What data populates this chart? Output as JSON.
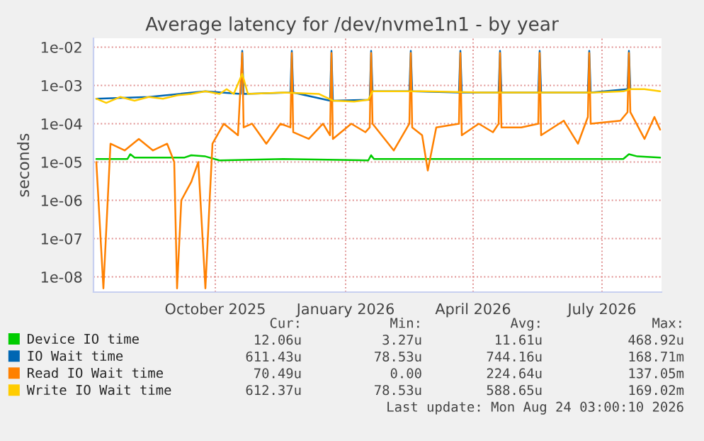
{
  "chart_data": {
    "type": "line",
    "title": "Average latency for /dev/nvme1n1 - by year",
    "ylabel": "seconds",
    "log": true,
    "grid": true,
    "legend": "bottom",
    "line_style": "solid",
    "marker": "none",
    "xlim": [
      "2025-07-07",
      "2026-08-12"
    ],
    "ylim": [
      4e-09,
      0.017
    ],
    "xticks": [
      {
        "value": "2025-10-01",
        "label": "October 2025"
      },
      {
        "value": "2026-01-01",
        "label": "January 2026"
      },
      {
        "value": "2026-04-01",
        "label": "April 2026"
      },
      {
        "value": "2026-07-01",
        "label": "July 2026"
      }
    ],
    "yticks": [
      {
        "value": 1e-08,
        "label": "1e-08"
      },
      {
        "value": 1e-07,
        "label": "1e-07"
      },
      {
        "value": 1e-06,
        "label": "1e-06"
      },
      {
        "value": 1e-05,
        "label": "1e-05"
      },
      {
        "value": 0.0001,
        "label": "1e-04"
      },
      {
        "value": 0.001,
        "label": "1e-03"
      },
      {
        "value": 0.01,
        "label": "1e-02"
      }
    ],
    "series": [
      {
        "name": "Device IO time",
        "color": "#00cc00",
        "x": [
          "2025-07-09",
          "2025-07-31",
          "2025-08-02",
          "2025-08-05",
          "2025-09-09",
          "2025-09-14",
          "2025-09-24",
          "2025-10-04",
          "2025-11-18",
          "2026-01-17",
          "2026-01-19",
          "2026-01-21",
          "2026-03-18",
          "2026-05-17",
          "2026-07-16",
          "2026-07-20",
          "2026-07-26",
          "2026-08-11"
        ],
        "values": [
          1.2e-05,
          1.2e-05,
          1.6e-05,
          1.3e-05,
          1.3e-05,
          1.5e-05,
          1.4e-05,
          1.1e-05,
          1.2e-05,
          1.1e-05,
          1.5e-05,
          1.2e-05,
          1.2e-05,
          1.2e-05,
          1.2e-05,
          1.6e-05,
          1.4e-05,
          1.3e-05
        ]
      },
      {
        "name": "IO Wait time",
        "color": "#0066b3",
        "x": [
          "2025-07-09",
          "2025-08-15",
          "2025-09-24",
          "2025-10-19",
          "2025-10-20",
          "2025-10-21",
          "2025-11-23",
          "2025-11-24",
          "2025-11-25",
          "2025-12-21",
          "2025-12-22",
          "2025-12-23",
          "2026-01-18",
          "2026-01-19",
          "2026-01-20",
          "2026-02-15",
          "2026-02-16",
          "2026-02-17",
          "2026-03-22",
          "2026-03-23",
          "2026-03-24",
          "2026-04-19",
          "2026-04-20",
          "2026-04-21",
          "2026-05-17",
          "2026-05-18",
          "2026-05-19",
          "2026-06-21",
          "2026-06-22",
          "2026-06-23",
          "2026-07-19",
          "2026-07-20",
          "2026-07-21"
        ],
        "values": [
          0.00045,
          0.0005,
          0.0007,
          0.0006,
          0.008,
          0.0006,
          0.00065,
          0.008,
          0.00065,
          0.0004,
          0.008,
          0.0004,
          0.00042,
          0.008,
          0.0007,
          0.0007,
          0.008,
          0.0007,
          0.00065,
          0.008,
          0.00065,
          0.00065,
          0.008,
          0.00065,
          0.00065,
          0.008,
          0.00065,
          0.00065,
          0.008,
          0.00065,
          0.0008,
          0.008,
          0.0008
        ]
      },
      {
        "name": "Read IO Wait time",
        "color": "#ff8000",
        "x": [
          "2025-07-09",
          "2025-07-14",
          "2025-07-19",
          "2025-07-29",
          "2025-08-08",
          "2025-08-18",
          "2025-08-28",
          "2025-09-02",
          "2025-09-04",
          "2025-09-07",
          "2025-09-14",
          "2025-09-19",
          "2025-09-24",
          "2025-09-27",
          "2025-09-29",
          "2025-10-07",
          "2025-10-17",
          "2025-10-20",
          "2025-10-21",
          "2025-10-27",
          "2025-11-06",
          "2025-11-16",
          "2025-11-23",
          "2025-11-24",
          "2025-11-25",
          "2025-12-06",
          "2025-12-16",
          "2025-12-21",
          "2025-12-22",
          "2025-12-23",
          "2026-01-05",
          "2026-01-15",
          "2026-01-18",
          "2026-01-19",
          "2026-01-20",
          "2026-02-04",
          "2026-02-15",
          "2026-02-16",
          "2026-02-17",
          "2026-02-24",
          "2026-02-28",
          "2026-03-06",
          "2026-03-22",
          "2026-03-23",
          "2026-03-24",
          "2026-04-05",
          "2026-04-15",
          "2026-04-19",
          "2026-04-20",
          "2026-04-21",
          "2026-05-05",
          "2026-05-17",
          "2026-05-18",
          "2026-05-19",
          "2026-06-04",
          "2026-06-14",
          "2026-06-21",
          "2026-06-22",
          "2026-06-23",
          "2026-07-14",
          "2026-07-19",
          "2026-07-20",
          "2026-07-21",
          "2026-07-31",
          "2026-08-07",
          "2026-08-11"
        ],
        "values": [
          1e-05,
          5e-09,
          3e-05,
          2e-05,
          4e-05,
          2e-05,
          3e-05,
          1e-05,
          5e-09,
          1e-06,
          3e-06,
          1e-05,
          5e-09,
          1e-06,
          3e-05,
          0.0001,
          5e-05,
          0.007,
          8e-05,
          0.0001,
          3e-05,
          0.0001,
          8e-05,
          0.007,
          6e-05,
          4e-05,
          0.0001,
          5e-05,
          0.007,
          4e-05,
          0.0001,
          6e-05,
          8e-05,
          0.007,
          0.0001,
          2e-05,
          0.0001,
          0.007,
          8e-05,
          5e-05,
          6e-06,
          8e-05,
          0.0001,
          0.007,
          5e-05,
          0.0001,
          6e-05,
          0.0001,
          0.007,
          8e-05,
          8e-05,
          0.0001,
          0.007,
          5e-05,
          0.00012,
          3e-05,
          0.00015,
          0.007,
          0.0001,
          0.00012,
          0.0002,
          0.007,
          0.0002,
          4e-05,
          0.00015,
          7e-05
        ]
      },
      {
        "name": "Write IO Wait time",
        "color": "#ffcc00",
        "x": [
          "2025-07-09",
          "2025-07-16",
          "2025-07-26",
          "2025-08-05",
          "2025-08-15",
          "2025-08-25",
          "2025-09-04",
          "2025-09-14",
          "2025-09-24",
          "2025-10-04",
          "2025-10-09",
          "2025-10-14",
          "2025-10-20",
          "2025-10-24",
          "2025-11-18",
          "2025-12-13",
          "2025-12-23",
          "2026-01-07",
          "2026-01-17",
          "2026-01-20",
          "2026-02-26",
          "2026-04-07",
          "2026-05-17",
          "2026-06-26",
          "2026-07-16",
          "2026-07-21",
          "2026-07-31",
          "2026-08-11"
        ],
        "values": [
          0.00045,
          0.00035,
          0.0005,
          0.0004,
          0.0005,
          0.00045,
          0.00055,
          0.0006,
          0.0007,
          0.0006,
          0.0008,
          0.0006,
          0.002,
          0.0006,
          0.00065,
          0.0006,
          0.0004,
          0.00038,
          0.00042,
          0.0007,
          0.0007,
          0.00065,
          0.00065,
          0.00065,
          0.0007,
          0.0008,
          0.0008,
          0.0007
        ]
      }
    ],
    "annotations": [
      "Cur:",
      "Min:",
      "Avg:",
      "Max:",
      "12.06u",
      "3.27u",
      "11.61u",
      "468.92u",
      "611.43u",
      "78.53u",
      "744.16u",
      "168.71m",
      "70.49u",
      "0.00",
      "224.64u",
      "137.05m",
      "612.37u",
      "78.53u",
      "588.65u",
      "169.02m",
      "Last update: Mon Aug 24 03:00:10 2026"
    ]
  }
}
